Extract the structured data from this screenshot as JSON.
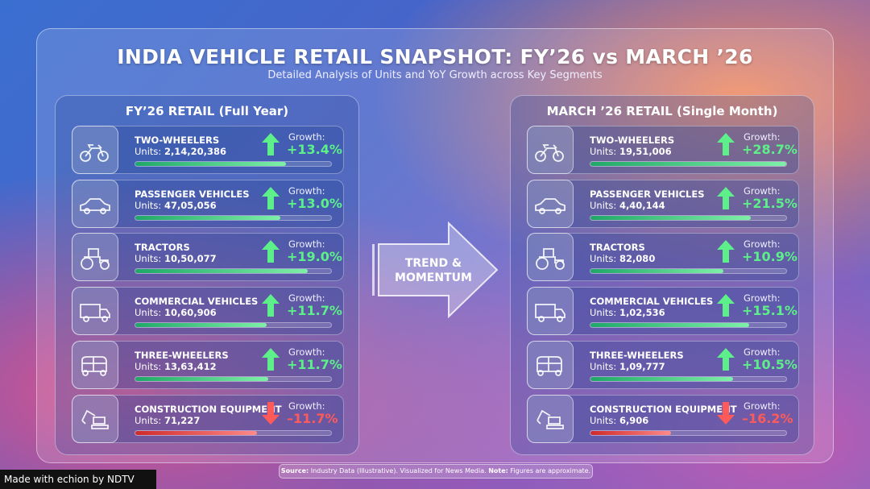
{
  "header": {
    "title": "INDIA VEHICLE RETAIL SNAPSHOT: FY’26 vs MARCH ’26",
    "subtitle": "Detailed Analysis of Units and YoY Growth across Key Segments"
  },
  "colors": {
    "positive": "#5df08a",
    "negative": "#ff5a5a"
  },
  "center": {
    "line1": "TREND &",
    "line2": "MOMENTUM"
  },
  "panels": [
    {
      "title": "FY’26 RETAIL (Full Year)",
      "rows": [
        {
          "icon": "motorcycle-icon",
          "name": "TWO-WHEELERS",
          "units_label": "Units:",
          "units": "2,14,20,386",
          "growth_label": "Growth:",
          "growth": "+13.4%",
          "direction": "up",
          "bar_fraction": 0.77
        },
        {
          "icon": "car-icon",
          "name": "PASSENGER VEHICLES",
          "units_label": "Units:",
          "units": "47,05,056",
          "growth_label": "Growth:",
          "growth": "+13.0%",
          "direction": "up",
          "bar_fraction": 0.74
        },
        {
          "icon": "tractor-icon",
          "name": "TRACTORS",
          "units_label": "Units:",
          "units": "10,50,077",
          "growth_label": "Growth:",
          "growth": "+19.0%",
          "direction": "up",
          "bar_fraction": 0.88
        },
        {
          "icon": "truck-icon",
          "name": "COMMERCIAL VEHICLES",
          "units_label": "Units:",
          "units": "10,60,906",
          "growth_label": "Growth:",
          "growth": "+11.7%",
          "direction": "up",
          "bar_fraction": 0.67
        },
        {
          "icon": "auto-rickshaw-icon",
          "name": "THREE-WHEELERS",
          "units_label": "Units:",
          "units": "13,63,412",
          "growth_label": "Growth:",
          "growth": "+11.7%",
          "direction": "up",
          "bar_fraction": 0.68
        },
        {
          "icon": "excavator-icon",
          "name": "CONSTRUCTION EQUIPMENT",
          "units_label": "Units:",
          "units": "71,227",
          "growth_label": "Growth:",
          "growth": "–11.7%",
          "direction": "down",
          "bar_fraction": 0.62
        }
      ]
    },
    {
      "title": "MARCH ’26 RETAIL (Single Month)",
      "rows": [
        {
          "icon": "motorcycle-icon",
          "name": "TWO-WHEELERS",
          "units_label": "Units:",
          "units": "19,51,006",
          "growth_label": "Growth:",
          "growth": "+28.7%",
          "direction": "up",
          "bar_fraction": 1.0
        },
        {
          "icon": "car-icon",
          "name": "PASSENGER VEHICLES",
          "units_label": "Units:",
          "units": "4,40,144",
          "growth_label": "Growth:",
          "growth": "+21.5%",
          "direction": "up",
          "bar_fraction": 0.82
        },
        {
          "icon": "tractor-icon",
          "name": "TRACTORS",
          "units_label": "Units:",
          "units": "82,080",
          "growth_label": "Growth:",
          "growth": "+10.9%",
          "direction": "up",
          "bar_fraction": 0.68
        },
        {
          "icon": "truck-icon",
          "name": "COMMERCIAL VEHICLES",
          "units_label": "Units:",
          "units": "1,02,536",
          "growth_label": "Growth:",
          "growth": "+15.1%",
          "direction": "up",
          "bar_fraction": 0.81
        },
        {
          "icon": "auto-rickshaw-icon",
          "name": "THREE-WHEELERS",
          "units_label": "Units:",
          "units": "1,09,777",
          "growth_label": "Growth:",
          "growth": "+10.5%",
          "direction": "up",
          "bar_fraction": 0.73
        },
        {
          "icon": "excavator-icon",
          "name": "CONSTRUCTION EQUIPMENT",
          "units_label": "Units:",
          "units": "6,906",
          "growth_label": "Growth:",
          "growth": "–16.2%",
          "direction": "down",
          "bar_fraction": 0.41
        }
      ]
    }
  ],
  "footer": {
    "source_label": "Source:",
    "source_text": " Industry Data (Illustrative). Visualized for News Media. ",
    "note_label": "Note:",
    "note_text": " Figures are approximate."
  },
  "badge": {
    "text": "Made with echion by NDTV"
  }
}
